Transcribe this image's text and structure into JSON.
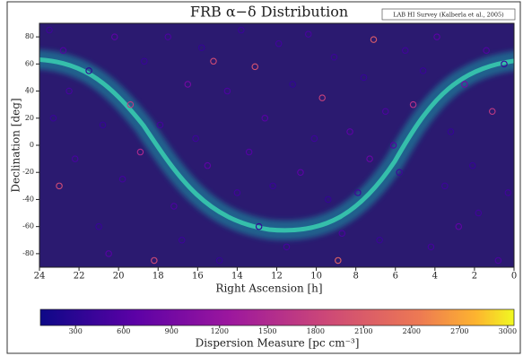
{
  "chart_data": {
    "type": "scatter",
    "title": "FRB α−δ Distribution",
    "annotation": "LAB HI Survey (Kalberla et al., 2005)",
    "x_label": "Right Ascension [h]",
    "y_label": "Declination [deg]",
    "colorbar_label": "Dispersion Measure [pc cm⁻³]",
    "xlim": [
      24,
      0
    ],
    "xticks": [
      24,
      22,
      20,
      18,
      16,
      14,
      12,
      10,
      8,
      6,
      4,
      2,
      0
    ],
    "ylim": [
      -90,
      90
    ],
    "yticks": [
      -80,
      -60,
      -40,
      -20,
      0,
      20,
      40,
      60,
      80
    ],
    "clim": [
      80,
      3040
    ],
    "cticks": [
      300,
      600,
      900,
      1200,
      1500,
      1800,
      2100,
      2400,
      2700,
      3000
    ],
    "x": [
      23.5,
      22.8,
      21.5,
      20.2,
      19.4,
      18.7,
      17.9,
      16.5,
      15.8,
      15.2,
      14.5,
      13.8,
      13.1,
      12.6,
      11.9,
      11.2,
      10.4,
      9.7,
      9.1,
      8.3,
      7.6,
      7.1,
      6.5,
      5.8,
      5.1,
      4.6,
      3.9,
      3.2,
      2.5,
      1.8,
      1.1,
      0.5,
      23.0,
      22.2,
      21.0,
      20.5,
      19.8,
      18.9,
      17.2,
      16.8,
      15.5,
      14.9,
      14.0,
      13.4,
      12.2,
      11.5,
      10.8,
      10.1,
      9.4,
      8.7,
      7.9,
      7.3,
      6.8,
      6.1,
      4.2,
      3.5,
      2.8,
      2.1,
      0.8,
      0.3,
      23.3,
      22.5,
      20.8,
      17.5,
      16.1,
      12.9,
      8.9,
      5.5,
      1.4,
      18.2
    ],
    "y": [
      85,
      70,
      55,
      80,
      30,
      62,
      15,
      45,
      72,
      62,
      40,
      85,
      58,
      20,
      75,
      45,
      82,
      35,
      65,
      10,
      50,
      78,
      25,
      -20,
      30,
      55,
      80,
      10,
      45,
      -50,
      25,
      60,
      -30,
      -10,
      -60,
      -80,
      -25,
      -5,
      -45,
      -70,
      -15,
      -85,
      -35,
      -5,
      -30,
      -75,
      -20,
      5,
      -40,
      -65,
      -35,
      -10,
      -70,
      0,
      -75,
      -30,
      -60,
      -15,
      -85,
      -35,
      20,
      40,
      15,
      80,
      5,
      -60,
      -85,
      70,
      70,
      -85
    ],
    "dm": [
      450,
      600,
      350,
      700,
      1700,
      400,
      500,
      900,
      380,
      1900,
      550,
      420,
      2000,
      650,
      480,
      360,
      520,
      1800,
      430,
      700,
      390,
      2100,
      560,
      450,
      1600,
      410,
      680,
      380,
      900,
      470,
      1700,
      430,
      1900,
      520,
      400,
      650,
      480,
      1500,
      560,
      430,
      700,
      390,
      480,
      620,
      410,
      520,
      690,
      450,
      380,
      560,
      470,
      800,
      420,
      610,
      500,
      440,
      720,
      390,
      560,
      480,
      420,
      510,
      390,
      560,
      450,
      380,
      2200,
      470,
      600,
      1900
    ]
  }
}
